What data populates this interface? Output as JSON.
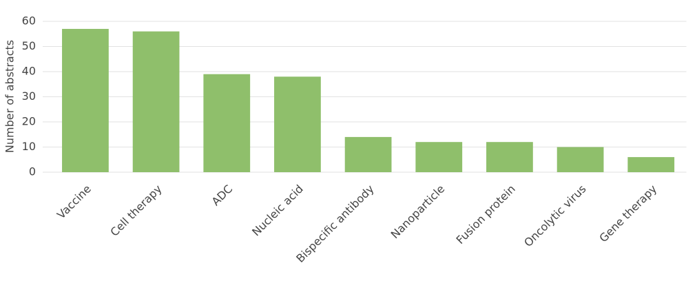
{
  "chart_data": {
    "type": "bar",
    "y_label": "Number of abstracts",
    "categories": [
      "Vaccine",
      "Cell therapy",
      "ADC",
      "Nucleic acid",
      "Bispecific antibody",
      "Nanoparticle",
      "Fusion protein",
      "Oncolytic virus",
      "Gene therapy"
    ],
    "values": [
      57,
      56,
      39,
      38,
      14,
      12,
      12,
      10,
      6
    ],
    "color": "#8fbf6b",
    "ylim": [
      0,
      60
    ],
    "yticks": [
      0,
      10,
      20,
      30,
      40,
      50,
      60
    ],
    "grid": true
  }
}
